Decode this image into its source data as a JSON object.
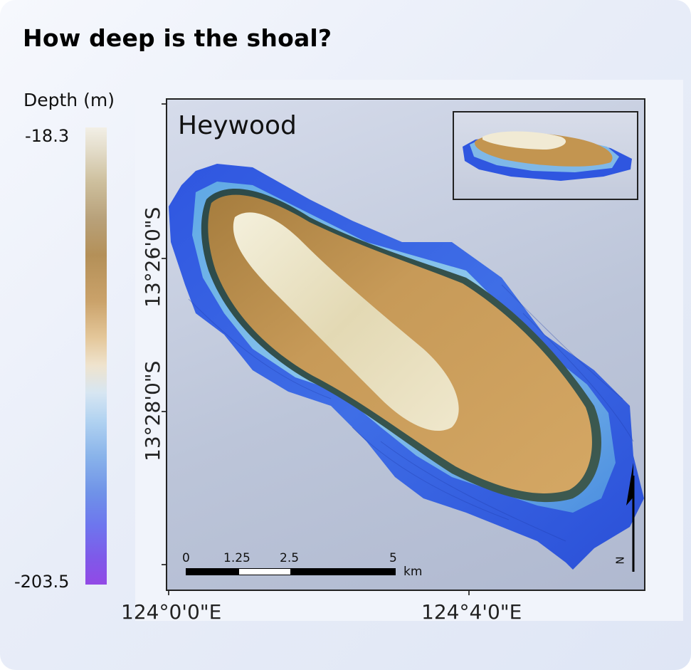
{
  "title": "How deep is the shoal?",
  "legend": {
    "title": "Depth (m)",
    "max_label": "-18.3",
    "min_label": "-203.5",
    "colors": [
      "#f2efe6",
      "#b49058",
      "#e4c79a",
      "#b2d3f1",
      "#6f92e8",
      "#9249e6"
    ]
  },
  "map": {
    "name": "Heywood",
    "lat_labels": [
      "13°26'0\"S",
      "13°28'0\"S"
    ],
    "lon_labels": [
      "124°0'0\"E",
      "124°4'0\"E"
    ],
    "scale_labels": [
      "0",
      "1.25",
      "2.5",
      "5"
    ],
    "scale_unit": "km",
    "north_letter": "N"
  }
}
